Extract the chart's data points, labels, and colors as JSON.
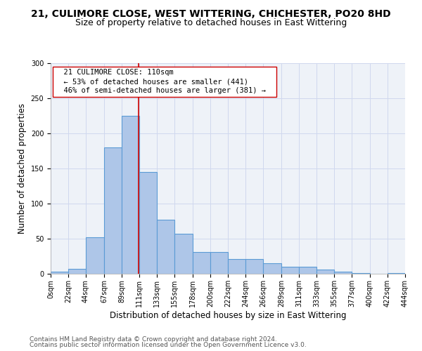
{
  "title_line1": "21, CULIMORE CLOSE, WEST WITTERING, CHICHESTER, PO20 8HD",
  "title_line2": "Size of property relative to detached houses in East Wittering",
  "xlabel": "Distribution of detached houses by size in East Wittering",
  "ylabel": "Number of detached properties",
  "footer_line1": "Contains HM Land Registry data © Crown copyright and database right 2024.",
  "footer_line2": "Contains public sector information licensed under the Open Government Licence v3.0.",
  "bin_edges": [
    0,
    22,
    44,
    67,
    89,
    111,
    133,
    155,
    178,
    200,
    222,
    244,
    266,
    289,
    311,
    333,
    355,
    377,
    400,
    422,
    444
  ],
  "bar_heights": [
    3,
    7,
    52,
    180,
    225,
    145,
    77,
    57,
    31,
    31,
    21,
    21,
    15,
    10,
    10,
    6,
    3,
    1,
    0,
    1
  ],
  "bar_color": "#aec6e8",
  "bar_edge_color": "#5b9bd5",
  "bar_linewidth": 0.8,
  "vline_x": 110,
  "vline_color": "#cc0000",
  "vline_linewidth": 1.2,
  "annotation_text": "  21 CULIMORE CLOSE: 110sqm  \n  ← 53% of detached houses are smaller (441)  \n  46% of semi-detached houses are larger (381) →  ",
  "annotation_box_color": "white",
  "annotation_box_edge_color": "#cc0000",
  "annotation_fontsize": 7.5,
  "ylim": [
    0,
    300
  ],
  "yticks": [
    0,
    50,
    100,
    150,
    200,
    250,
    300
  ],
  "tick_labels": [
    "0sqm",
    "22sqm",
    "44sqm",
    "67sqm",
    "89sqm",
    "111sqm",
    "133sqm",
    "155sqm",
    "178sqm",
    "200sqm",
    "222sqm",
    "244sqm",
    "266sqm",
    "289sqm",
    "311sqm",
    "333sqm",
    "355sqm",
    "377sqm",
    "400sqm",
    "422sqm",
    "444sqm"
  ],
  "grid_color": "#d0d8ee",
  "background_color": "#eef2f8",
  "title_fontsize": 10,
  "subtitle_fontsize": 9,
  "axis_label_fontsize": 8.5,
  "tick_fontsize": 7,
  "footer_fontsize": 6.5
}
